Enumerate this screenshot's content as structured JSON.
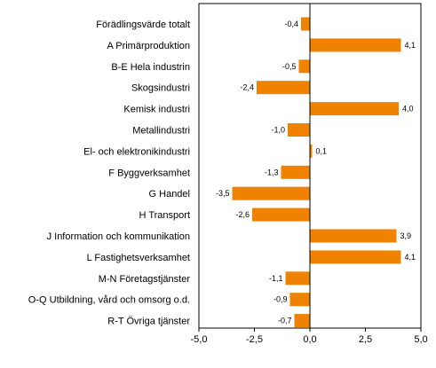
{
  "chart_data": {
    "type": "bar",
    "orientation": "horizontal",
    "title": "",
    "xlabel": "",
    "ylabel": "",
    "xlim": [
      -5.0,
      5.0
    ],
    "grid": false,
    "legend": "none",
    "bar_color": "#ef8200",
    "categories": [
      "Förädlingsvärde totalt",
      "A Primärproduktion",
      "B-E Hela industrin",
      "Skogsindustri",
      "Kemisk industri",
      "Metallindustri",
      "El- och elektronikindustri",
      "F Byggverksamhet",
      "G Handel",
      "H Transport",
      "J Information och kommunikation",
      "L Fastighetsverksamhet",
      "M-N Företagstjänster",
      "O-Q Utbildning, vård och omsorg o.d.",
      "R-T Övriga tjänster"
    ],
    "values": [
      -0.4,
      4.1,
      -0.5,
      -2.4,
      4.0,
      -1.0,
      0.1,
      -1.3,
      -3.5,
      -2.6,
      3.9,
      4.1,
      -1.1,
      -0.9,
      -0.7
    ],
    "value_labels": [
      "-0,4",
      "4,1",
      "-0,5",
      "-2,4",
      "4,0",
      "-1,0",
      "0,1",
      "-1,3",
      "-3,5",
      "-2,6",
      "3,9",
      "4,1",
      "-1,1",
      "-0,9",
      "-0,7"
    ],
    "x_ticks": [
      -5.0,
      -2.5,
      0.0,
      2.5,
      5.0
    ],
    "x_tick_labels": [
      "-5,0",
      "-2,5",
      "0,0",
      "2,5",
      "5,0"
    ]
  }
}
